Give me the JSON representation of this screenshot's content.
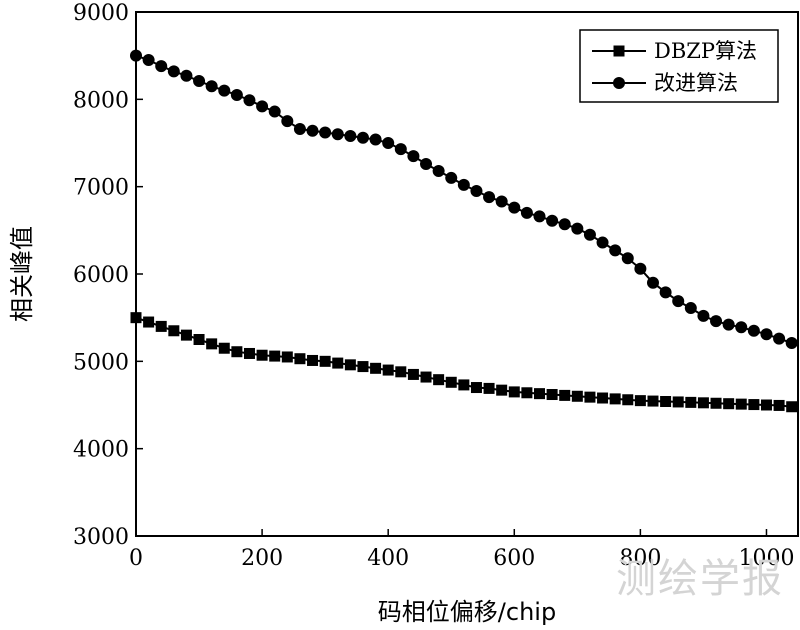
{
  "chart_data": {
    "type": "line",
    "xlabel": "码相位偏移/chip",
    "ylabel": "相关峰值",
    "xlim": [
      0,
      1050
    ],
    "ylim": [
      3000,
      9000
    ],
    "xticks": [
      0,
      200,
      400,
      600,
      800,
      1000
    ],
    "yticks": [
      3000,
      4000,
      5000,
      6000,
      7000,
      8000,
      9000
    ],
    "legend_position": "top-right",
    "grid": false,
    "series": [
      {
        "name": "DBZP算法",
        "marker": "square",
        "x": [
          0,
          20,
          40,
          60,
          80,
          100,
          120,
          140,
          160,
          180,
          200,
          220,
          240,
          260,
          280,
          300,
          320,
          340,
          360,
          380,
          400,
          420,
          440,
          460,
          480,
          500,
          520,
          540,
          560,
          580,
          600,
          620,
          640,
          660,
          680,
          700,
          720,
          740,
          760,
          780,
          800,
          820,
          840,
          860,
          880,
          900,
          920,
          940,
          960,
          980,
          1000,
          1020,
          1040
        ],
        "y": [
          5500,
          5450,
          5400,
          5350,
          5300,
          5250,
          5200,
          5150,
          5110,
          5090,
          5070,
          5060,
          5050,
          5030,
          5010,
          5000,
          4980,
          4960,
          4940,
          4920,
          4900,
          4880,
          4850,
          4820,
          4790,
          4760,
          4730,
          4700,
          4690,
          4670,
          4650,
          4640,
          4630,
          4620,
          4610,
          4600,
          4590,
          4580,
          4570,
          4560,
          4550,
          4545,
          4540,
          4535,
          4530,
          4525,
          4520,
          4515,
          4510,
          4505,
          4500,
          4495,
          4480
        ]
      },
      {
        "name": "改进算法",
        "marker": "circle",
        "x": [
          0,
          20,
          40,
          60,
          80,
          100,
          120,
          140,
          160,
          180,
          200,
          220,
          240,
          260,
          280,
          300,
          320,
          340,
          360,
          380,
          400,
          420,
          440,
          460,
          480,
          500,
          520,
          540,
          560,
          580,
          600,
          620,
          640,
          660,
          680,
          700,
          720,
          740,
          760,
          780,
          800,
          820,
          840,
          860,
          880,
          900,
          920,
          940,
          960,
          980,
          1000,
          1020,
          1040
        ],
        "y": [
          8500,
          8450,
          8380,
          8320,
          8270,
          8210,
          8150,
          8100,
          8050,
          7990,
          7920,
          7860,
          7750,
          7660,
          7640,
          7620,
          7600,
          7580,
          7560,
          7540,
          7500,
          7430,
          7350,
          7260,
          7180,
          7100,
          7020,
          6950,
          6880,
          6830,
          6760,
          6700,
          6660,
          6610,
          6570,
          6520,
          6450,
          6360,
          6270,
          6180,
          6060,
          5900,
          5790,
          5690,
          5610,
          5520,
          5460,
          5420,
          5390,
          5350,
          5310,
          5260,
          5210
        ]
      }
    ]
  },
  "watermark": "测绘学报"
}
